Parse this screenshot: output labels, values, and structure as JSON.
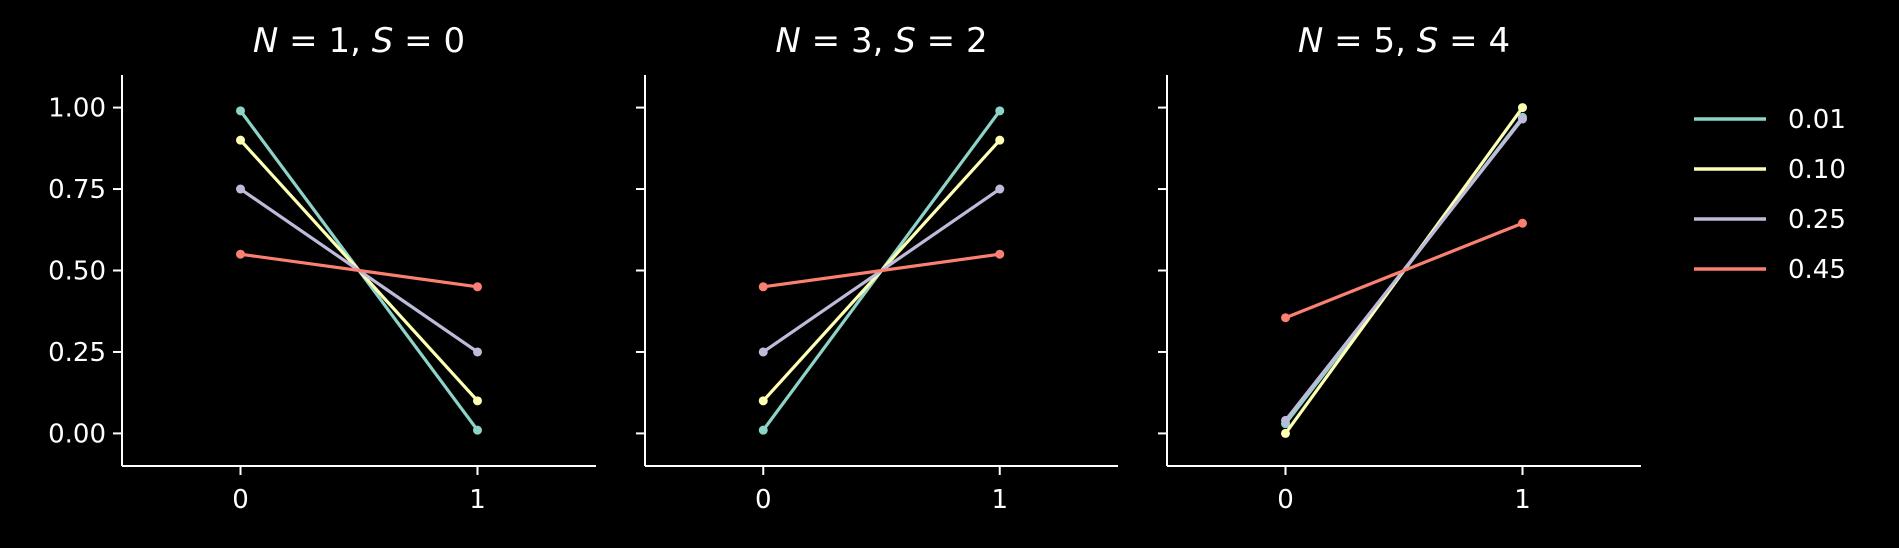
{
  "chart_data": {
    "type": "line",
    "facets": [
      {
        "title_var1": "N",
        "title_val1": "1",
        "title_var2": "S",
        "title_val2": "0",
        "x": [
          0,
          1
        ],
        "series": [
          {
            "name": "0.01",
            "values": [
              0.99,
              0.01
            ]
          },
          {
            "name": "0.10",
            "values": [
              0.9,
              0.1
            ]
          },
          {
            "name": "0.25",
            "values": [
              0.75,
              0.25
            ]
          },
          {
            "name": "0.45",
            "values": [
              0.55,
              0.45
            ]
          }
        ]
      },
      {
        "title_var1": "N",
        "title_val1": "3",
        "title_var2": "S",
        "title_val2": "2",
        "x": [
          0,
          1
        ],
        "series": [
          {
            "name": "0.01",
            "values": [
              0.01,
              0.99
            ]
          },
          {
            "name": "0.10",
            "values": [
              0.1,
              0.9
            ]
          },
          {
            "name": "0.25",
            "values": [
              0.25,
              0.75
            ]
          },
          {
            "name": "0.45",
            "values": [
              0.45,
              0.55
            ]
          }
        ]
      },
      {
        "title_var1": "N",
        "title_val1": "5",
        "title_var2": "S",
        "title_val2": "4",
        "x": [
          0,
          1
        ],
        "series": [
          {
            "name": "0.01",
            "values": [
              0.03,
              0.97
            ]
          },
          {
            "name": "0.10",
            "values": [
              0.0,
              1.0
            ]
          },
          {
            "name": "0.25",
            "values": [
              0.04,
              0.965
            ]
          },
          {
            "name": "0.45",
            "values": [
              0.355,
              0.645
            ]
          }
        ]
      }
    ],
    "xlim": [
      -0.5,
      1.5
    ],
    "ylim": [
      -0.1,
      1.1
    ],
    "xticks": [
      0,
      1
    ],
    "xtick_labels": [
      "0",
      "1"
    ],
    "yticks": [
      0,
      0.25,
      0.5,
      0.75,
      1.0
    ],
    "ytick_labels": [
      "0.00",
      "0.25",
      "0.50",
      "0.75",
      "1.00"
    ],
    "grid": false,
    "legend_placement": "right",
    "legend_entries": [
      "0.01",
      "0.10",
      "0.25",
      "0.45"
    ],
    "colors": {
      "0.01": "#8dd3c7",
      "0.10": "#ffffb3",
      "0.25": "#bebada",
      "0.45": "#fb8072"
    },
    "background": "#000000",
    "foreground": "#ffffff"
  }
}
